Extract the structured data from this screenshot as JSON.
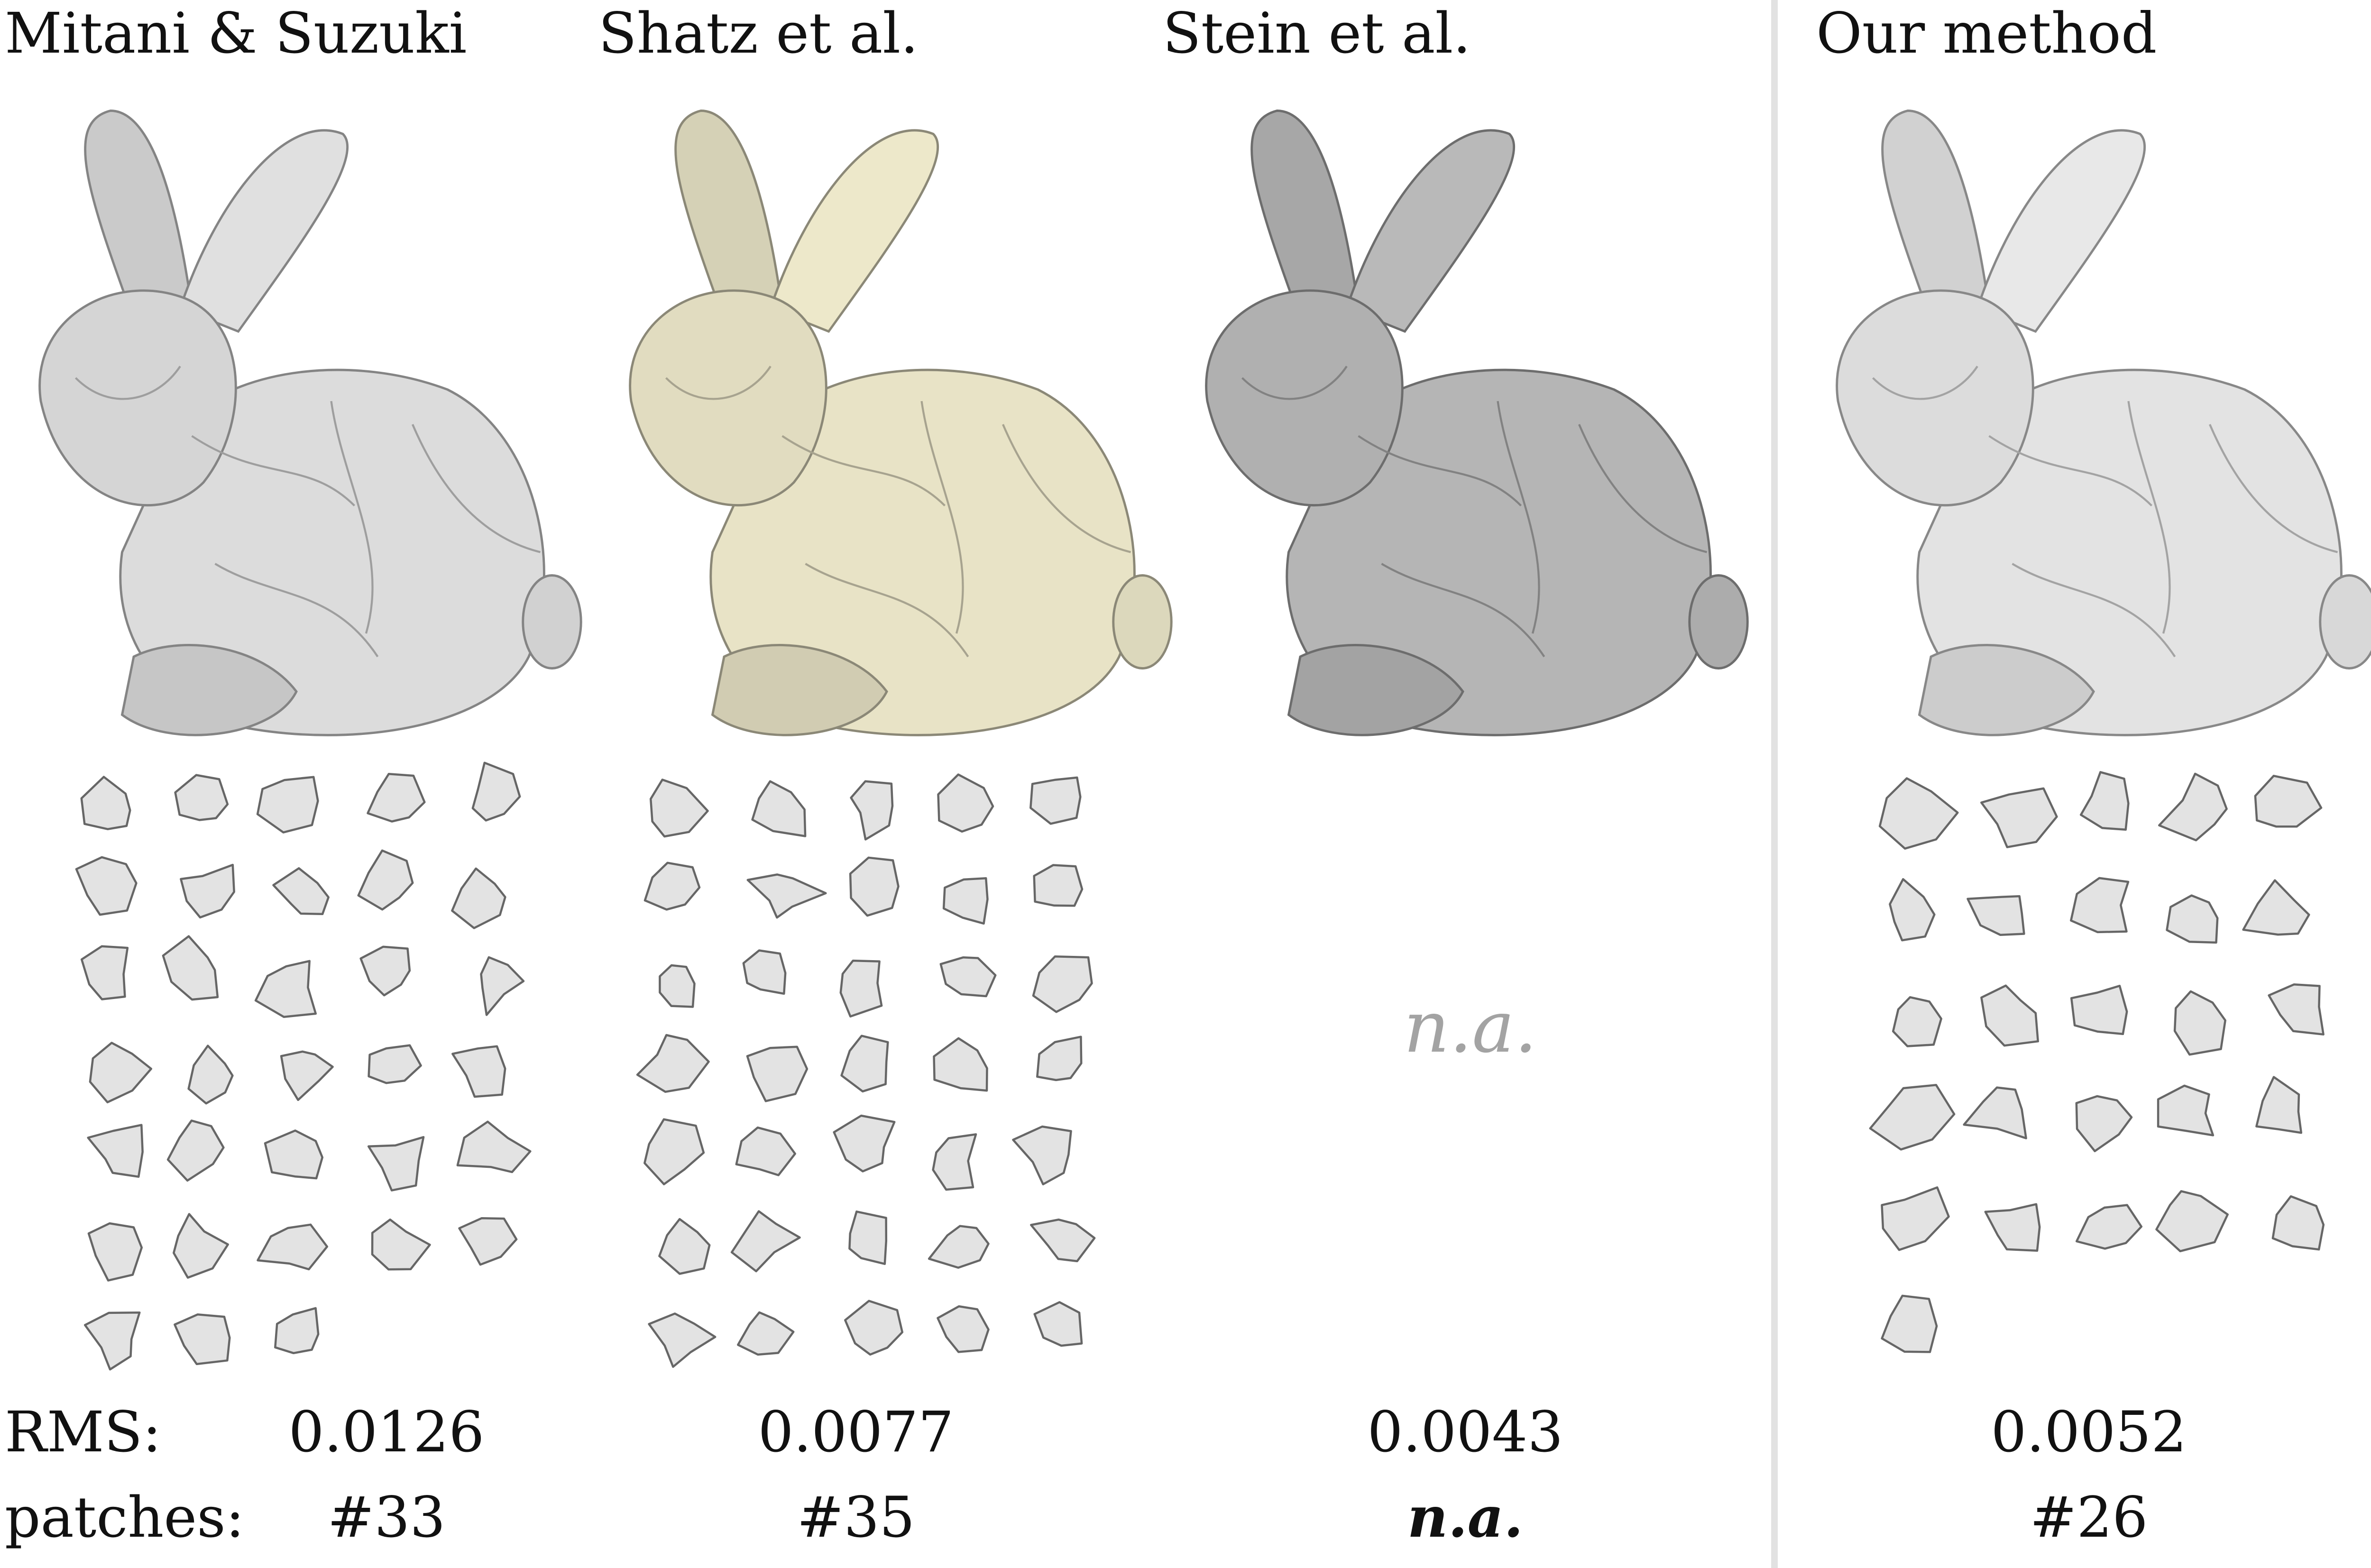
{
  "columns": [
    {
      "title": "Mitani & Suzuki",
      "rms": "0.0126",
      "patches": "#33",
      "tone": "#dcdcdc"
    },
    {
      "title": "Shatz et al.",
      "rms": "0.0077",
      "patches": "#35",
      "tone": "#e8e3c6"
    },
    {
      "title": "Stein et al.",
      "rms": "0.0043",
      "patches": "n.a.",
      "tone": "#b5b5b5",
      "layout_placeholder": "n.a."
    },
    {
      "title": "Our method",
      "rms": "0.0052",
      "patches": "#26",
      "tone": "#e3e3e3"
    }
  ],
  "rows": {
    "rms_label": "RMS:",
    "patches_label": "patches:"
  },
  "colors": {
    "patch_fill": "#e3e3e3",
    "patch_stroke": "#666666",
    "divider": "#e2e2e2",
    "na_text": "#a3a3a3"
  }
}
